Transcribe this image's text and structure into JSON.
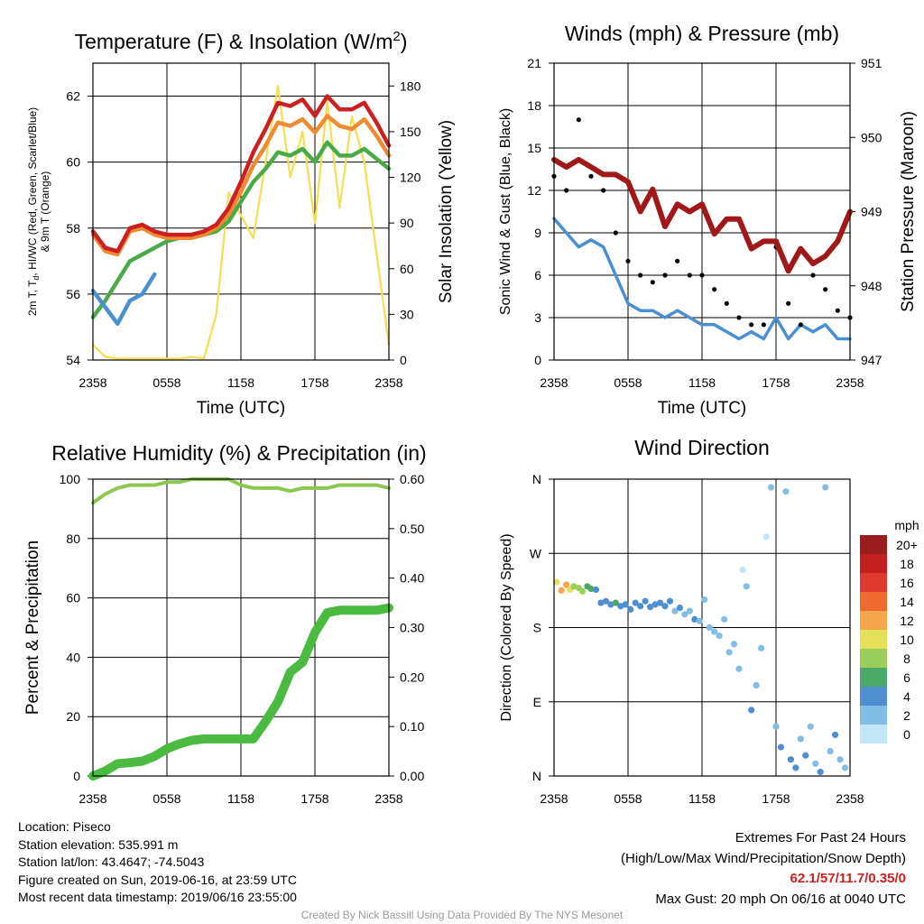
{
  "chart_data": [
    {
      "type": "line",
      "title": "Temperature (F) & Insolation (W/m²)",
      "xlabel": "Time (UTC)",
      "ylabel": "2m T, Td, HI/WC (Red, Green, Scarlet/Blue) & 9m T (Orange)",
      "ylabel_line1": "2m T, T",
      "ylabel_sub": "d",
      "ylabel_line1_rest": ", HI/WC (Red, Green, Scarlet/Blue)",
      "ylabel_line2": "& 9m T (Orange)",
      "y2label": "Solar Insolation (Yellow)",
      "x_ticks": [
        "2358",
        "0558",
        "1158",
        "1758",
        "2358"
      ],
      "ylim": [
        54,
        63
      ],
      "y_ticks": [
        "54",
        "56",
        "58",
        "60",
        "62"
      ],
      "y2lim": [
        0,
        195
      ],
      "y2_ticks": [
        "0",
        "30",
        "60",
        "90",
        "120",
        "150",
        "180"
      ],
      "x": [
        0,
        1,
        2,
        3,
        4,
        5,
        6,
        7,
        8,
        9,
        10,
        11,
        12,
        13,
        14,
        15,
        16,
        17,
        18,
        19,
        20,
        21,
        22,
        23,
        24
      ],
      "series": [
        {
          "name": "2m T",
          "color": "#cc2020",
          "values": [
            57.9,
            57.4,
            57.3,
            58.0,
            58.1,
            57.9,
            57.8,
            57.8,
            57.8,
            57.9,
            58.1,
            58.6,
            59.4,
            60.3,
            61.0,
            61.8,
            61.7,
            61.9,
            61.4,
            62.0,
            61.6,
            61.6,
            61.8,
            61.2,
            60.5
          ]
        },
        {
          "name": "9m T",
          "color": "#f08a30",
          "values": [
            57.8,
            57.3,
            57.2,
            57.9,
            58.0,
            57.8,
            57.7,
            57.7,
            57.7,
            57.8,
            58.0,
            58.4,
            59.1,
            59.9,
            60.5,
            61.2,
            61.1,
            61.3,
            60.9,
            61.4,
            61.1,
            61.0,
            61.3,
            60.8,
            60.2
          ]
        },
        {
          "name": "Td",
          "color": "#4aaa48",
          "values": [
            55.3,
            55.8,
            56.4,
            57.0,
            57.2,
            57.4,
            57.6,
            57.7,
            57.8,
            57.8,
            57.9,
            58.2,
            58.8,
            59.4,
            59.8,
            60.3,
            60.2,
            60.4,
            60.0,
            60.6,
            60.2,
            60.2,
            60.4,
            60.1,
            59.8
          ]
        },
        {
          "name": "WC",
          "color": "#4a8fd0",
          "values": [
            56.1,
            55.6,
            55.1,
            55.8,
            56.0,
            56.6,
            null,
            null,
            null,
            null,
            null,
            null,
            null,
            null,
            null,
            null,
            null,
            null,
            null,
            null,
            null,
            null,
            null,
            null,
            null
          ]
        },
        {
          "name": "Insolation",
          "color": "#f5de52",
          "axis": "y2",
          "values": [
            10,
            2,
            1,
            1,
            1,
            1,
            1,
            1,
            2,
            1,
            30,
            110,
            95,
            80,
            130,
            180,
            120,
            150,
            90,
            170,
            100,
            160,
            130,
            70,
            10
          ]
        }
      ]
    },
    {
      "type": "line",
      "title": "Winds (mph) & Pressure (mb)",
      "xlabel": "Time (UTC)",
      "ylabel": "Sonic Wind & Gust (Blue, Black)",
      "y2label": "Station Pressure (Maroon)",
      "x_ticks": [
        "2358",
        "0558",
        "1158",
        "1758",
        "2358"
      ],
      "ylim": [
        0,
        21
      ],
      "y_ticks": [
        "0",
        "3",
        "6",
        "9",
        "12",
        "15",
        "18",
        "21"
      ],
      "y2lim": [
        947,
        951
      ],
      "y2_ticks": [
        "947",
        "948",
        "949",
        "950",
        "951"
      ],
      "x": [
        0,
        1,
        2,
        3,
        4,
        5,
        6,
        7,
        8,
        9,
        10,
        11,
        12,
        13,
        14,
        15,
        16,
        17,
        18,
        19,
        20,
        21,
        22,
        23,
        24
      ],
      "series": [
        {
          "name": "Sonic Wind",
          "color": "#4a8fd0",
          "values": [
            10.0,
            9.0,
            8.0,
            8.5,
            8.0,
            6.0,
            4.0,
            3.5,
            3.5,
            3.0,
            3.5,
            3.0,
            2.5,
            2.5,
            2.0,
            1.5,
            2.0,
            1.5,
            3.0,
            1.5,
            2.5,
            2.0,
            2.5,
            1.5,
            1.5
          ]
        },
        {
          "name": "Gust",
          "color": "#000000",
          "type": "scatter",
          "values": [
            13.0,
            12.0,
            17.0,
            13.0,
            12.0,
            9.0,
            7.0,
            6.0,
            5.5,
            6.0,
            7.0,
            6.0,
            6.0,
            5.0,
            4.0,
            3.0,
            2.5,
            2.5,
            8.0,
            4.0,
            2.5,
            6.0,
            5.0,
            3.5,
            3.0
          ]
        },
        {
          "name": "Station Pressure",
          "color": "#a01818",
          "axis": "y2",
          "values": [
            949.7,
            949.6,
            949.7,
            949.6,
            949.5,
            949.5,
            949.4,
            949.0,
            949.3,
            948.8,
            949.1,
            949.0,
            949.1,
            948.7,
            948.9,
            948.9,
            948.5,
            948.6,
            948.6,
            948.2,
            948.5,
            948.3,
            948.4,
            948.6,
            949.0
          ]
        }
      ]
    },
    {
      "type": "line",
      "title": "Relative Humidity (%) & Precipitation (in)",
      "ylabel": "Percent & Precipitation",
      "x_ticks": [
        "2358",
        "0558",
        "1158",
        "1758",
        "2358"
      ],
      "ylim": [
        0,
        100
      ],
      "y_ticks": [
        "0",
        "20",
        "40",
        "60",
        "80",
        "100"
      ],
      "y2lim": [
        0,
        0.6
      ],
      "y2_ticks": [
        "0.00",
        "0.10",
        "0.20",
        "0.30",
        "0.40",
        "0.50",
        "0.60"
      ],
      "x": [
        0,
        1,
        2,
        3,
        4,
        5,
        6,
        7,
        8,
        9,
        10,
        11,
        12,
        13,
        14,
        15,
        16,
        17,
        18,
        19,
        20,
        21,
        22,
        23,
        24
      ],
      "series": [
        {
          "name": "Relative Humidity",
          "color": "#8cc850",
          "values": [
            92,
            95,
            97,
            98,
            98,
            98,
            99,
            99,
            100,
            100,
            100,
            100,
            98,
            97,
            97,
            97,
            96,
            97,
            97,
            97,
            98,
            98,
            98,
            98,
            97
          ]
        },
        {
          "name": "Precipitation",
          "color": "#4aba40",
          "axis": "y2",
          "values": [
            0.0,
            0.01,
            0.025,
            0.027,
            0.03,
            0.04,
            0.055,
            0.065,
            0.072,
            0.075,
            0.075,
            0.075,
            0.075,
            0.075,
            0.11,
            0.15,
            0.21,
            0.23,
            0.29,
            0.33,
            0.335,
            0.335,
            0.335,
            0.335,
            0.34
          ]
        }
      ]
    },
    {
      "type": "scatter",
      "title": "Wind Direction",
      "ylabel": "Direction (Colored By Speed)",
      "x_ticks": [
        "2358",
        "0558",
        "1158",
        "1758",
        "2358"
      ],
      "y_ticks": [
        "N",
        "E",
        "S",
        "W",
        "N"
      ],
      "ylim": [
        0,
        360
      ],
      "legend_title": "mph",
      "legend_position": "right",
      "legend_labels": [
        "20+",
        "18",
        "16",
        "14",
        "12",
        "10",
        "8",
        "6",
        "4",
        "2",
        "0"
      ],
      "legend_colors": [
        "#9b1c1c",
        "#c21f1f",
        "#df3a2e",
        "#ee6a2e",
        "#f5a64a",
        "#e4e05a",
        "#9acd5c",
        "#4aa868",
        "#4f8ed0",
        "#82bde6",
        "#c3e6f6"
      ],
      "points_x": [
        0.2,
        0.6,
        1.0,
        1.3,
        1.6,
        2.0,
        2.3,
        2.7,
        3.0,
        3.4,
        3.8,
        4.2,
        4.6,
        5.0,
        5.4,
        5.8,
        6.2,
        6.6,
        7.0,
        7.4,
        7.8,
        8.2,
        8.6,
        9.0,
        9.4,
        9.8,
        10.2,
        10.6,
        11.0,
        11.4,
        11.8,
        12.2,
        12.6,
        13.0,
        13.4,
        13.8,
        14.2,
        14.6,
        15.0,
        15.3,
        15.6,
        16.0,
        16.4,
        16.8,
        17.2,
        17.6,
        18.0,
        18.4,
        18.8,
        19.2,
        19.6,
        20.0,
        20.4,
        20.8,
        21.2,
        21.6,
        22.0,
        22.4,
        22.8,
        23.2,
        23.6
      ],
      "points_y": [
        235,
        225,
        232,
        226,
        230,
        228,
        224,
        230,
        227,
        226,
        210,
        212,
        208,
        210,
        206,
        208,
        202,
        210,
        206,
        212,
        205,
        208,
        210,
        206,
        212,
        200,
        204,
        196,
        200,
        190,
        188,
        214,
        180,
        175,
        170,
        190,
        150,
        160,
        130,
        250,
        230,
        80,
        110,
        155,
        290,
        350,
        60,
        35,
        345,
        20,
        10,
        45,
        25,
        60,
        15,
        5,
        350,
        30,
        50,
        20,
        10
      ],
      "points_speed": [
        10,
        11,
        12,
        9,
        8,
        7,
        8,
        6,
        5,
        4,
        4,
        3,
        4,
        5,
        3,
        4,
        3,
        4,
        3,
        4,
        3,
        4,
        3,
        4,
        3,
        2,
        3,
        2,
        2,
        3,
        2,
        1,
        2,
        1,
        2,
        1,
        2,
        1,
        2,
        0,
        1,
        3,
        2,
        1,
        0,
        1,
        2,
        3,
        2,
        3,
        4,
        2,
        3,
        1,
        2,
        3,
        1,
        2,
        3,
        1,
        2
      ]
    }
  ],
  "footer": {
    "location": "Location: Piseco",
    "elevation": "Station elevation: 535.991 m",
    "latlon": "Station lat/lon: 43.4647; -74.5043",
    "created": "Figure created on Sun, 2019-06-16, at 23:59 UTC",
    "timestamp": "Most recent data timestamp: 2019/06/16 23:55:00",
    "extremes_heading": "Extremes For Past 24 Hours",
    "extremes_desc": "(High/Low/Max Wind/Precipitation/Snow Depth)",
    "extremes_values": "62.1/57/11.7/0.35/0",
    "max_gust": "Max Gust: 20 mph On 06/16 at 0040 UTC",
    "credit": "Created By Nick Bassill Using Data Provided By The NYS Mesonet"
  }
}
